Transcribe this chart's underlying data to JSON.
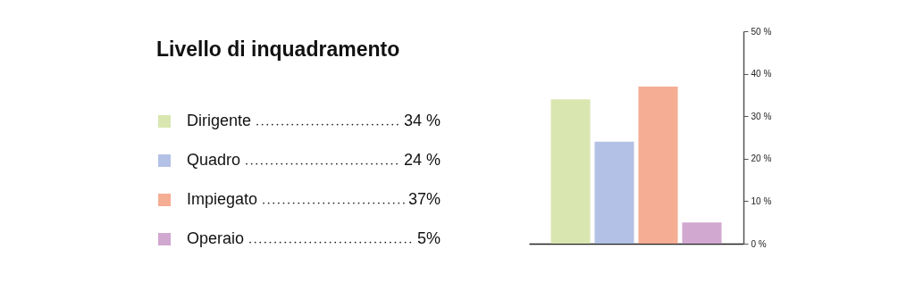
{
  "chart_data": {
    "type": "bar",
    "title": "Livello di inquadramento",
    "categories": [
      null,
      null,
      null,
      null
    ],
    "series": [
      {
        "name": "Dirigente",
        "color": "#d9e6b0",
        "values": [
          34,
          null,
          null,
          null
        ]
      },
      {
        "name": "Quadro",
        "color": "#b3c1e6",
        "values": [
          null,
          24,
          null,
          null
        ]
      },
      {
        "name": "Impiegato",
        "color": "#f5ad94",
        "values": [
          null,
          null,
          37,
          null
        ]
      },
      {
        "name": "Operaio",
        "color": "#d0a8d0",
        "values": [
          null,
          null,
          null,
          5
        ]
      }
    ],
    "annotations": [
      "34 %",
      "24 %",
      "37%",
      "5%"
    ],
    "stacked": true,
    "ylim": [
      0,
      50
    ],
    "yticks": [
      {
        "value": 0,
        "label": "0 %"
      },
      {
        "value": 10,
        "label": "10 %"
      },
      {
        "value": 20,
        "label": "20 %"
      },
      {
        "value": 30,
        "label": "30 %"
      },
      {
        "value": 40,
        "label": "40 %"
      },
      {
        "value": 50,
        "label": "50 %"
      }
    ],
    "tick_labels": "y",
    "grid": false,
    "legend": "left"
  }
}
